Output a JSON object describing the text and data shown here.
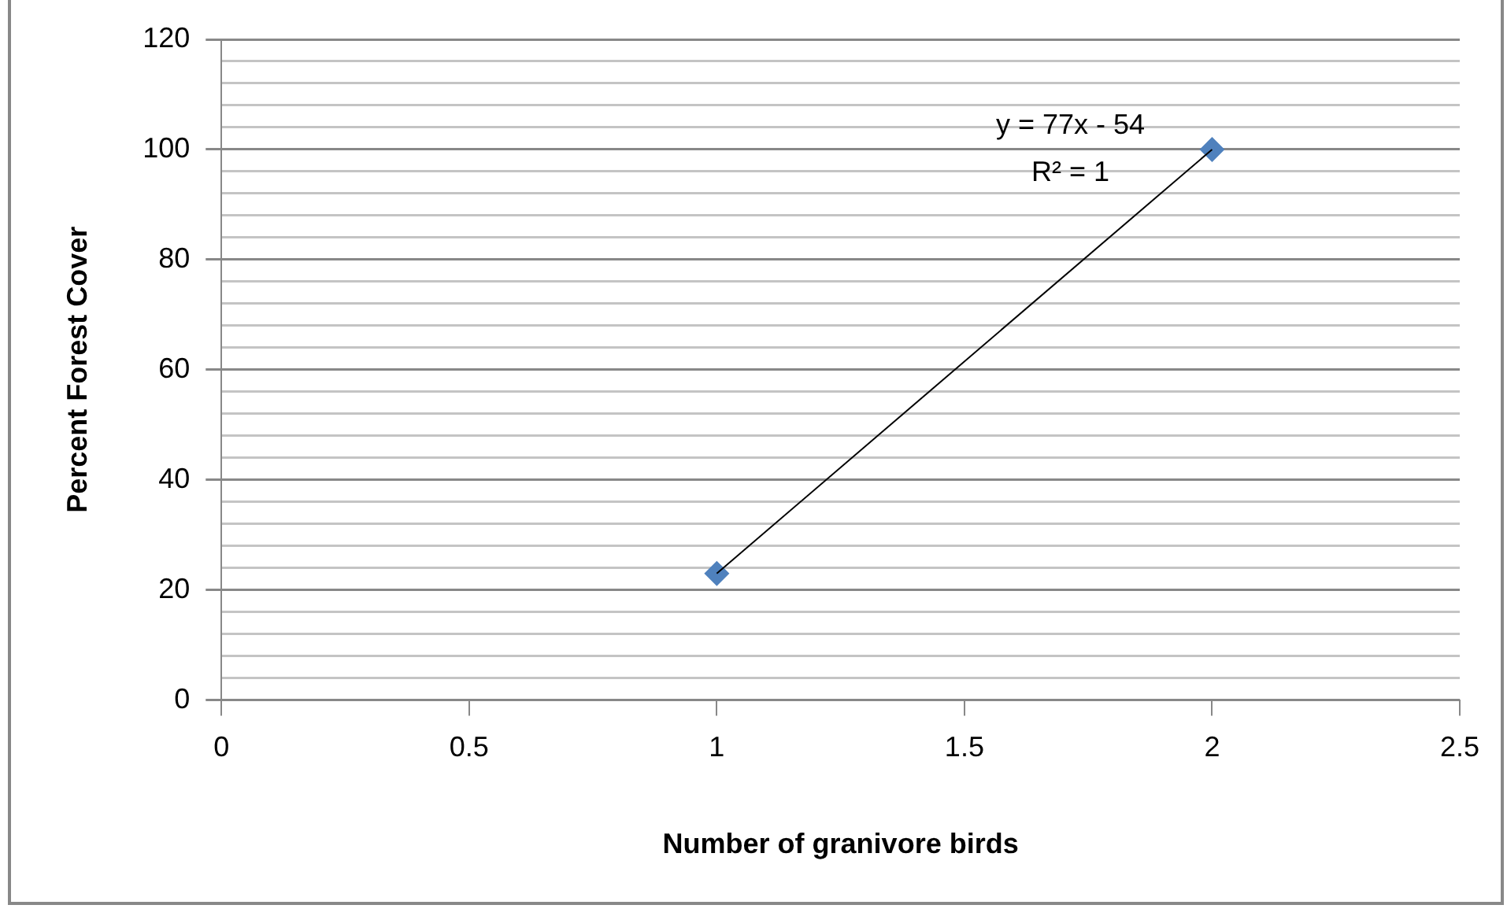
{
  "chart_data": {
    "type": "scatter",
    "xlabel": "Number of granivore birds",
    "ylabel": "Percent Forest Cover",
    "series": [
      {
        "type": "scatter",
        "color": "#4f81bd",
        "values": [
          23,
          100
        ],
        "marker": "diamond"
      },
      {
        "type": "line",
        "color": "#000000",
        "values": [
          23,
          100
        ],
        "marker": "none"
      }
    ],
    "x": [
      1,
      2
    ],
    "xlim": [
      0,
      2.5
    ],
    "xticks": [
      0,
      0.5,
      1,
      1.5,
      2,
      2.5
    ],
    "ylim": [
      0,
      120
    ],
    "yticks": [
      0,
      {
        "value": 4,
        "label": null
      },
      {
        "value": 8,
        "label": null
      },
      {
        "value": 12,
        "label": null
      },
      {
        "value": 16,
        "label": null
      },
      20,
      {
        "value": 24,
        "label": null
      },
      {
        "value": 28,
        "label": null
      },
      {
        "value": 32,
        "label": null
      },
      {
        "value": 36,
        "label": null
      },
      40,
      {
        "value": 44,
        "label": null
      },
      {
        "value": 48,
        "label": null
      },
      {
        "value": 52,
        "label": null
      },
      {
        "value": 56,
        "label": null
      },
      60,
      {
        "value": 64,
        "label": null
      },
      {
        "value": 68,
        "label": null
      },
      {
        "value": 72,
        "label": null
      },
      {
        "value": 76,
        "label": null
      },
      80,
      {
        "value": 84,
        "label": null
      },
      {
        "value": 88,
        "label": null
      },
      {
        "value": 92,
        "label": null
      },
      {
        "value": 96,
        "label": null
      },
      100,
      {
        "value": 104,
        "label": null
      },
      {
        "value": 108,
        "label": null
      },
      {
        "value": 112,
        "label": null
      },
      {
        "value": 116,
        "label": null
      },
      120
    ],
    "grid": "y",
    "legend": false,
    "annotations": [
      "y = 77x - 54",
      "R² = 1"
    ]
  }
}
